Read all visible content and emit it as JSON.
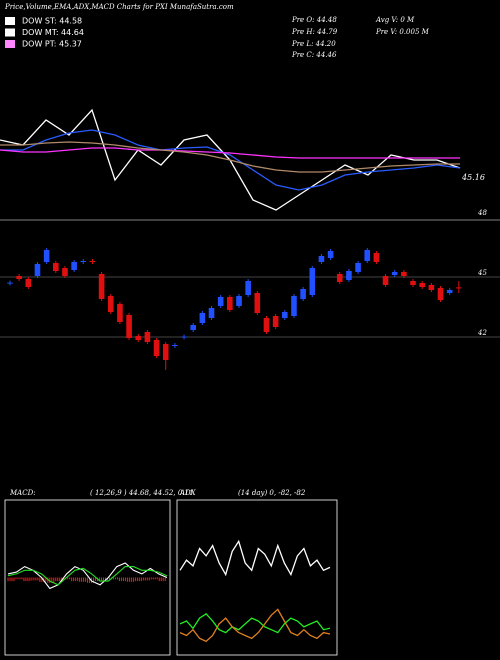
{
  "header": {
    "title": "Price,Volume,EMA,ADX,MACD Charts for PXI MunafaSutra.com"
  },
  "legend": [
    {
      "label": "DOW ST: 44.58",
      "color": "#ffffff"
    },
    {
      "label": "DOW MT: 44.64",
      "color": "#ffffff"
    },
    {
      "label": "DOW PT: 45.37",
      "color": "#ff88ff"
    }
  ],
  "quote": {
    "left": [
      "Pre  O: 44.48",
      "Pre  H: 44.79",
      "Pre  L: 44.20",
      "Pre  C: 44.46"
    ],
    "right": [
      "Avg V: 0  M",
      "Pre  V: 0.005 M"
    ]
  },
  "chart_data": [
    {
      "type": "line",
      "ylim": [
        44.05,
        47.5
      ],
      "last": 45.16,
      "series": [
        {
          "color": "#ffffff",
          "values": [
            46.3,
            46.15,
            46.9,
            46.45,
            47.2,
            45.1,
            46.0,
            45.55,
            46.3,
            46.45,
            45.7,
            44.5,
            44.2,
            44.65,
            45.1,
            45.55,
            45.25,
            45.85,
            45.7,
            45.7,
            45.46
          ]
        },
        {
          "color": "#2a5cff",
          "values": [
            46.0,
            46.0,
            46.3,
            46.51,
            46.6,
            46.45,
            46.15,
            46.0,
            46.06,
            46.09,
            45.85,
            45.4,
            44.95,
            44.8,
            44.95,
            45.25,
            45.34,
            45.4,
            45.46,
            45.55,
            45.46
          ]
        },
        {
          "color": "#ff33ff",
          "values": [
            46.0,
            45.94,
            45.94,
            46.0,
            46.06,
            46.06,
            46.0,
            46.0,
            45.97,
            45.94,
            45.91,
            45.85,
            45.79,
            45.76,
            45.76,
            45.76,
            45.76,
            45.76,
            45.76,
            45.76,
            45.76
          ]
        },
        {
          "color": "#b08a6a",
          "values": [
            46.15,
            46.15,
            46.21,
            46.24,
            46.21,
            46.15,
            46.06,
            46.0,
            45.94,
            45.85,
            45.7,
            45.52,
            45.4,
            45.34,
            45.34,
            45.4,
            45.46,
            45.52,
            45.55,
            45.58,
            45.58
          ]
        }
      ]
    },
    {
      "type": "candlestick",
      "ylim": [
        39.85,
        48
      ],
      "yticks": [
        48,
        45,
        42
      ],
      "grid": true,
      "up_color": "#2050ff",
      "down_color": "#e01010",
      "open": [
        44.68,
        45.05,
        44.9,
        45.05,
        45.75,
        45.7,
        45.45,
        45.35,
        45.75,
        45.8,
        45.15,
        44.05,
        43.65,
        43.1,
        42.05,
        42.25,
        41.85,
        41.65,
        41.55,
        41.98,
        42.35,
        42.7,
        42.95,
        43.55,
        44.0,
        43.55,
        44.1,
        44.2,
        42.95,
        43.05,
        42.95,
        43.05,
        43.9,
        44.1,
        45.75,
        45.95,
        45.15,
        44.85,
        45.25,
        45.8,
        46.2,
        45.05,
        45.1,
        45.25,
        44.8,
        44.7,
        44.6,
        44.45,
        44.2,
        44.48
      ],
      "high": [
        44.82,
        45.15,
        45.0,
        45.75,
        46.45,
        45.8,
        45.55,
        45.85,
        45.9,
        45.9,
        45.25,
        44.15,
        43.75,
        43.2,
        42.15,
        42.35,
        41.95,
        41.75,
        41.7,
        42.12,
        42.7,
        43.3,
        43.55,
        44.1,
        44.1,
        44.15,
        44.9,
        44.3,
        43.05,
        43.15,
        43.35,
        44.15,
        44.5,
        45.55,
        46.15,
        46.4,
        45.25,
        45.4,
        45.8,
        46.45,
        46.3,
        45.15,
        45.35,
        45.35,
        44.9,
        44.8,
        44.7,
        44.55,
        44.45,
        44.79
      ],
      "low": [
        44.58,
        44.8,
        44.4,
        44.95,
        45.65,
        45.2,
        44.95,
        45.25,
        45.65,
        45.65,
        43.8,
        43.15,
        42.65,
        41.85,
        41.75,
        41.65,
        40.95,
        40.35,
        41.45,
        41.88,
        42.25,
        42.6,
        42.85,
        43.45,
        43.25,
        43.45,
        44.0,
        43.1,
        42.15,
        42.4,
        42.85,
        42.95,
        43.8,
        44.0,
        45.65,
        45.85,
        44.65,
        44.75,
        45.15,
        45.7,
        45.65,
        44.5,
        45.0,
        44.95,
        44.5,
        44.4,
        44.25,
        43.75,
        44.1,
        44.2
      ],
      "close": [
        44.72,
        44.9,
        44.5,
        45.65,
        46.35,
        45.3,
        45.05,
        45.75,
        45.8,
        45.75,
        43.9,
        43.25,
        42.75,
        41.95,
        41.85,
        41.75,
        41.05,
        40.85,
        41.6,
        42.02,
        42.6,
        43.2,
        43.45,
        44.0,
        43.35,
        44.05,
        44.8,
        43.2,
        42.25,
        42.5,
        43.25,
        44.05,
        44.4,
        45.45,
        46.05,
        46.3,
        44.75,
        45.3,
        45.7,
        46.35,
        45.75,
        44.6,
        45.25,
        45.05,
        44.6,
        44.5,
        44.35,
        43.85,
        44.35,
        44.46
      ]
    },
    {
      "type": "macd",
      "title": "MACD:",
      "subtitle": "( 12,26,9 ) 44.68, 44.52, 0.11",
      "ylim": [
        -2,
        2
      ],
      "series": [
        {
          "color": "#ffffff",
          "values": [
            0.1,
            0.15,
            0.3,
            0.2,
            0.0,
            -0.3,
            -0.2,
            0.1,
            0.3,
            0.2,
            -0.1,
            -0.2,
            0.0,
            0.3,
            0.4,
            0.2,
            0.1,
            0.25,
            0.1,
            0.0
          ]
        },
        {
          "color": "#22dd22",
          "values": [
            0.05,
            0.1,
            0.2,
            0.2,
            0.1,
            -0.1,
            -0.2,
            0.0,
            0.2,
            0.25,
            0.1,
            -0.1,
            -0.1,
            0.1,
            0.3,
            0.3,
            0.2,
            0.2,
            0.15,
            0.05
          ]
        }
      ],
      "histogram": {
        "color": "#ee2222",
        "values": [
          -0.1,
          -0.05,
          -0.1,
          -0.08,
          -0.12,
          -0.15,
          -0.1,
          -0.05,
          -0.1,
          -0.12,
          -0.15,
          -0.1,
          -0.08,
          -0.05,
          -0.1,
          -0.12,
          -0.1,
          -0.08,
          -0.05,
          -0.1
        ]
      }
    },
    {
      "type": "adx",
      "title": "ADX",
      "subtitle": "(14 day) 0, -82, -82",
      "ylim": [
        0,
        100
      ],
      "series": [
        {
          "color": "#ffffff",
          "values": [
            55,
            62,
            58,
            70,
            65,
            72,
            60,
            52,
            68,
            75,
            60,
            55,
            70,
            66,
            58,
            72,
            60,
            52,
            65,
            70,
            58,
            62,
            55,
            57
          ]
        },
        {
          "color": "#22ee22",
          "values": [
            18,
            20,
            15,
            22,
            25,
            20,
            14,
            12,
            16,
            14,
            18,
            22,
            20,
            16,
            14,
            12,
            18,
            22,
            20,
            16,
            18,
            20,
            14,
            15
          ]
        },
        {
          "color": "#e08020",
          "values": [
            12,
            10,
            14,
            8,
            6,
            10,
            18,
            22,
            16,
            12,
            10,
            8,
            12,
            18,
            24,
            28,
            20,
            12,
            10,
            14,
            10,
            8,
            12,
            11
          ]
        }
      ]
    }
  ]
}
